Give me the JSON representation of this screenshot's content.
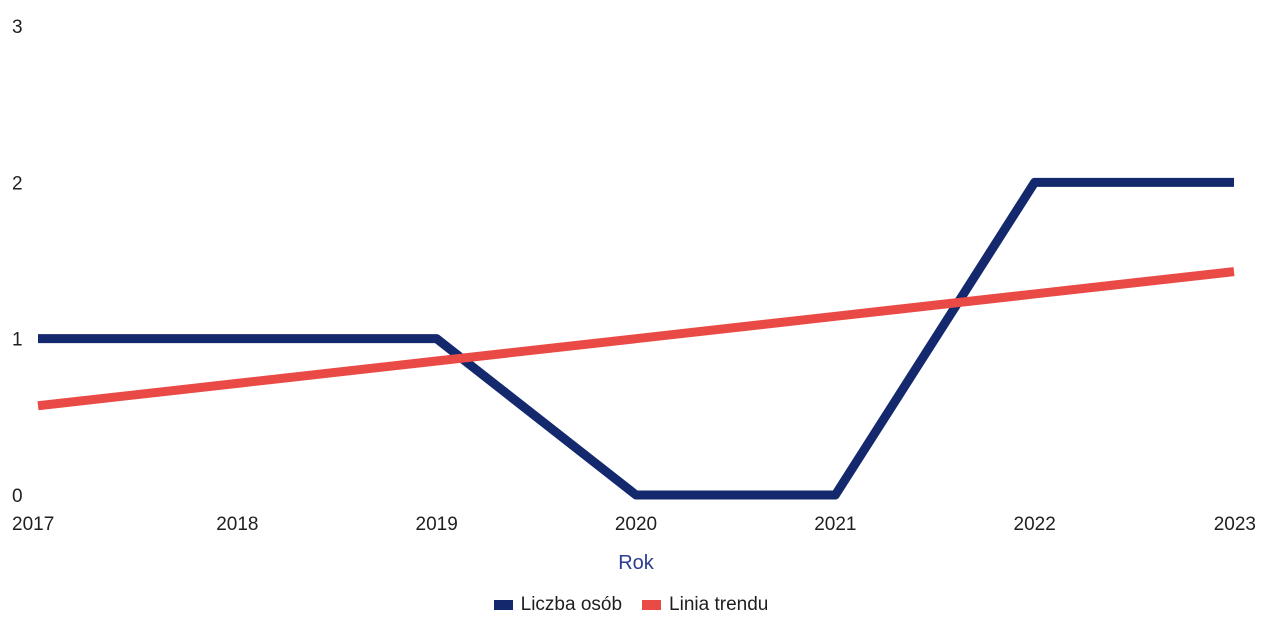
{
  "chart_data": {
    "type": "line",
    "x": [
      2017,
      2018,
      2019,
      2020,
      2021,
      2022,
      2023
    ],
    "series": [
      {
        "name": "Liczba osób",
        "color": "#14286e",
        "values": [
          1,
          1,
          1,
          0,
          0,
          2,
          2
        ]
      },
      {
        "name": "Linia trendu",
        "color": "#ea4a45",
        "values": [
          0.571,
          0.714,
          0.857,
          1.0,
          1.143,
          1.286,
          1.429
        ]
      }
    ],
    "xlabel": "Rok",
    "ylabel": "",
    "xlim": [
      2017,
      2023
    ],
    "ylim": [
      0,
      3
    ],
    "yticks": [
      0,
      1,
      2,
      3
    ],
    "grid": false,
    "legend": "bottom-center"
  }
}
